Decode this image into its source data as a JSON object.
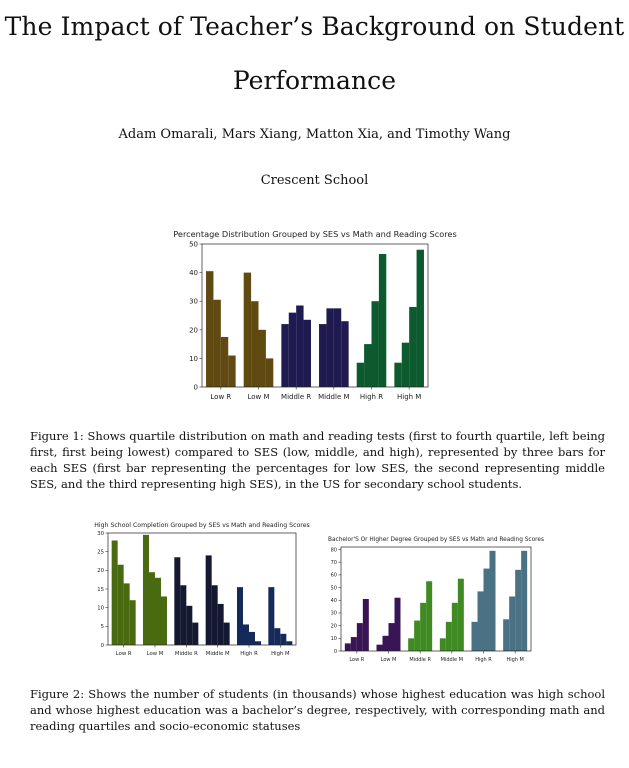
{
  "paper": {
    "title_line1": "The Impact of Teacher’s Background on Student",
    "title_line2": "Performance",
    "authors": "Adam Omarali, Mars Xiang, Matton Xia, and Timothy Wang",
    "affiliation": "Crescent School"
  },
  "captions": {
    "figure1": "Figure 1: Shows quartile distribution on math and reading tests (first to fourth quartile, left being first, first being lowest) compared to SES (low, middle, and high), represented by three bars for each SES (first bar representing the percentages for low SES, the second representing middle SES, and the third representing high SES), in the US for secondary school students.",
    "figure2": "Figure 2: Shows the number of students (in thousands) whose highest education was high school and whose highest education was a bachelor’s degree, respectively, with corresponding math and reading quartiles and socio-economic statuses"
  },
  "chart_data": [
    {
      "type": "bar",
      "title": "Percentage Distribution Grouped by SES vs Math and Reading Scores",
      "categories": [
        "Low R",
        "Low M",
        "Middle R",
        "Middle M",
        "High R",
        "High M"
      ],
      "bars_per_group": 4,
      "colors": [
        "#614a12",
        "#614a12",
        "#1f1a4f",
        "#1f1a4f",
        "#0d5a2f",
        "#0d5a2f"
      ],
      "values": [
        [
          40.5,
          30.5,
          17.5,
          11
        ],
        [
          40,
          30,
          20,
          10
        ],
        [
          22,
          26,
          28.5,
          23.5
        ],
        [
          22,
          27.5,
          27.5,
          23
        ],
        [
          8.5,
          15,
          30,
          46.5
        ],
        [
          8.5,
          15.5,
          28,
          48
        ]
      ],
      "ylim": [
        0,
        50
      ],
      "yticks": [
        0,
        10,
        20,
        30,
        40,
        50
      ],
      "xlabel": "",
      "ylabel": "",
      "grid": false
    },
    {
      "type": "bar",
      "title": "High School Completion Grouped by SES vs Math and Reading Scores",
      "categories": [
        "Low R",
        "Low M",
        "Middle R",
        "Middle M",
        "High R",
        "High M"
      ],
      "bars_per_group": 4,
      "colors": [
        "#4a6a12",
        "#4a6a12",
        "#141830",
        "#141830",
        "#142a5a",
        "#142a5a"
      ],
      "values": [
        [
          28,
          21.5,
          16.5,
          12
        ],
        [
          29.5,
          19.5,
          18,
          13
        ],
        [
          23.5,
          16,
          10.5,
          6
        ],
        [
          24,
          16,
          11,
          6
        ],
        [
          15.5,
          5.5,
          3.5,
          1
        ],
        [
          15.5,
          4.5,
          3,
          1
        ]
      ],
      "ylim": [
        0,
        30
      ],
      "yticks": [
        0,
        5,
        10,
        15,
        20,
        25,
        30
      ],
      "xlabel": "",
      "ylabel": "",
      "grid": false
    },
    {
      "type": "bar",
      "title": "Bachelor'S Or Higher Degree Grouped by SES vs Math and Reading Scores",
      "categories": [
        "Low R",
        "Low M",
        "Middle R",
        "Middle M",
        "High R",
        "High M"
      ],
      "bars_per_group": 4,
      "colors": [
        "#3a1556",
        "#3a1556",
        "#3f8a22",
        "#3f8a22",
        "#4a7184",
        "#4a7184"
      ],
      "values": [
        [
          6,
          11,
          22,
          41
        ],
        [
          5,
          12,
          22,
          42
        ],
        [
          10,
          24,
          38,
          55
        ],
        [
          10,
          23,
          38,
          57
        ],
        [
          23,
          47,
          65,
          79
        ],
        [
          25,
          43,
          64,
          79
        ]
      ],
      "ylim": [
        0,
        82
      ],
      "yticks": [
        0,
        10,
        20,
        30,
        40,
        50,
        60,
        70,
        80
      ],
      "xlabel": "",
      "ylabel": "",
      "grid": false
    }
  ]
}
